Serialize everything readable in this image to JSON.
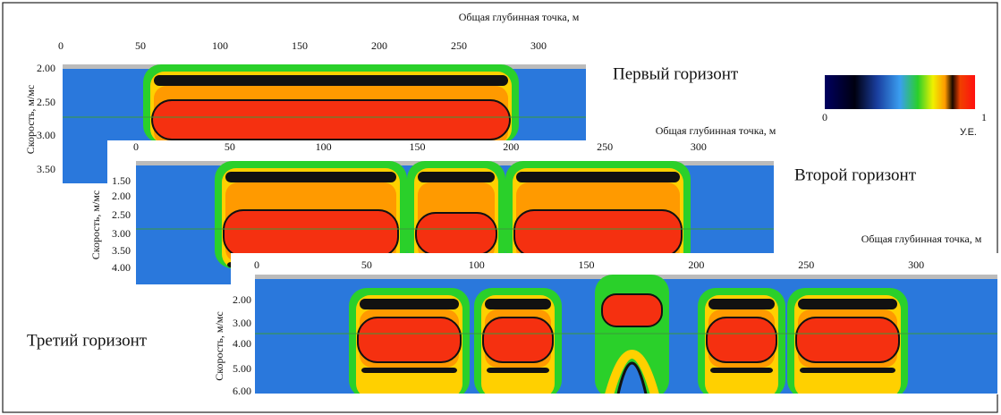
{
  "colorbar": {
    "min": "0",
    "max": "1",
    "unit": "У.Е."
  },
  "panels": [
    {
      "label": "Первый горизонт",
      "x_axis_title": "Общая глубинная точка, м",
      "x_ticks": [
        "0",
        "50",
        "100",
        "150",
        "200",
        "250",
        "300"
      ],
      "y_axis_title": "Скорость, м/мс",
      "y_ticks": [
        "2.00",
        "2.50",
        "3.00",
        "3.50"
      ]
    },
    {
      "label": "Второй горизонт",
      "x_axis_title": "Общая глубинная точка, м",
      "x_ticks": [
        "0",
        "50",
        "100",
        "150",
        "200",
        "250",
        "300"
      ],
      "y_axis_title": "Скорость, м/мс",
      "y_ticks": [
        "1.50",
        "2.00",
        "2.50",
        "3.00",
        "3.50",
        "4.00"
      ]
    },
    {
      "label": "Третий горизонт",
      "x_axis_title": "Общая глубинная точка, м",
      "x_ticks": [
        "0",
        "50",
        "100",
        "150",
        "200",
        "250",
        "300"
      ],
      "y_axis_title": "Скорость, м/мс",
      "y_ticks": [
        "2.00",
        "3.00",
        "4.00",
        "5.00",
        "6.00"
      ]
    }
  ]
}
